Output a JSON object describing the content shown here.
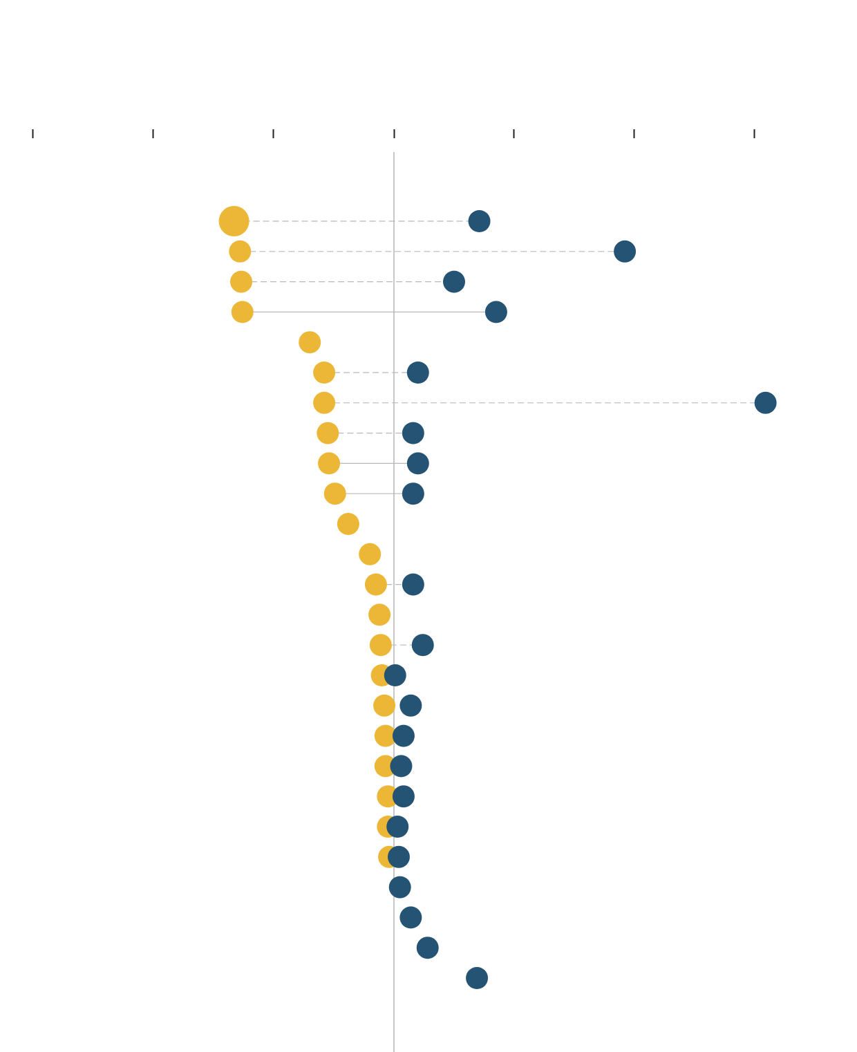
{
  "chart_data": {
    "type": "scatter",
    "subtype": "dumbbell",
    "title": "",
    "xlabel": "",
    "ylabel": "",
    "xlim": [
      -3,
      3
    ],
    "x_ticks": [
      -3,
      -2,
      -1,
      0,
      1,
      2,
      3
    ],
    "tick_labels_shown": false,
    "zero_line": true,
    "grid": false,
    "legend": "none",
    "colors": {
      "series_a": "#ecb736",
      "series_b": "#245373",
      "connector": "#b8b8b8",
      "zero_line": "#b5b5b5",
      "tick": "#222222"
    },
    "rows": [
      {
        "a": -1.33,
        "b": 0.71,
        "a_large": true,
        "connector": "dashed"
      },
      {
        "a": -1.28,
        "b": 1.92,
        "connector": "dashed"
      },
      {
        "a": -1.27,
        "b": 0.5,
        "connector": "dashed"
      },
      {
        "a": -1.26,
        "b": 0.85,
        "connector": "solid"
      },
      {
        "a": -0.7,
        "b": null
      },
      {
        "a": -0.58,
        "b": 0.2,
        "connector": "dashed"
      },
      {
        "a": -0.58,
        "b": 3.09,
        "connector": "dashed"
      },
      {
        "a": -0.55,
        "b": 0.16,
        "connector": "dashed"
      },
      {
        "a": -0.54,
        "b": 0.2,
        "connector": "solid"
      },
      {
        "a": -0.49,
        "b": 0.16,
        "connector": "solid"
      },
      {
        "a": -0.38,
        "b": null
      },
      {
        "a": -0.2,
        "b": null
      },
      {
        "a": -0.15,
        "b": 0.16,
        "connector": "dashed"
      },
      {
        "a": -0.12,
        "b": null
      },
      {
        "a": -0.11,
        "b": 0.24,
        "connector": "dashed"
      },
      {
        "a": -0.1,
        "b": 0.01,
        "connector": "none"
      },
      {
        "a": -0.08,
        "b": 0.14,
        "connector": "none"
      },
      {
        "a": -0.07,
        "b": 0.08,
        "connector": "none"
      },
      {
        "a": -0.07,
        "b": 0.06,
        "connector": "none"
      },
      {
        "a": -0.05,
        "b": 0.08,
        "connector": "none"
      },
      {
        "a": -0.05,
        "b": 0.03,
        "connector": "none"
      },
      {
        "a": -0.04,
        "b": 0.04,
        "connector": "none"
      },
      {
        "a": null,
        "b": 0.05
      },
      {
        "a": null,
        "b": 0.14
      },
      {
        "a": null,
        "b": 0.28
      },
      {
        "a": null,
        "b": 0.69
      }
    ]
  }
}
